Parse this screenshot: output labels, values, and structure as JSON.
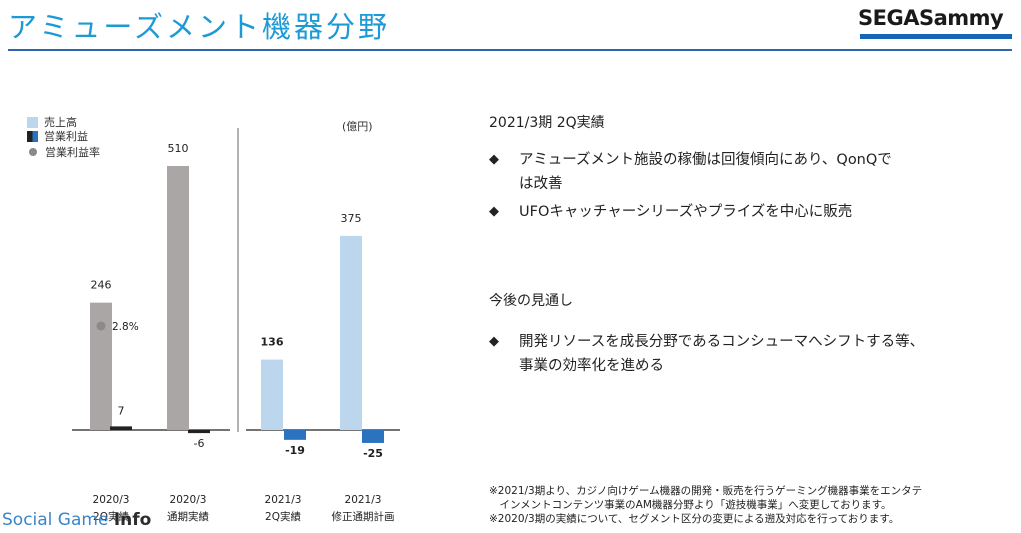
{
  "header": {
    "title": "アミューズメント機器分野",
    "logo_text": "SEGASammy"
  },
  "legend": {
    "sales": "売上高",
    "op_income": "営業利益",
    "op_margin": "営業利益率"
  },
  "unit_label": "(億円)",
  "chart_data": {
    "type": "bar",
    "categories": [
      "2020/3\n2Q実績",
      "2020/3\n通期実績",
      "2021/3\n2Q実績",
      "2021/3\n修正通期計画"
    ],
    "series": [
      {
        "name": "売上高",
        "values": [
          246,
          510,
          136,
          375
        ]
      },
      {
        "name": "営業利益",
        "values": [
          7,
          -6,
          -19,
          -25
        ]
      }
    ],
    "op_margin": [
      {
        "category_index": 0,
        "label": "2.8%"
      }
    ],
    "value_labels": {
      "sales": [
        "246",
        "510",
        "136",
        "375"
      ],
      "op_income": [
        "7",
        "-6",
        "-19",
        "-25"
      ]
    },
    "colors": {
      "sales_prev": "#aaa6a6",
      "sales_cur": "#bcd6ee",
      "op_prev": "#222222",
      "op_cur": "#2b73bf",
      "margin_dot": "#8a8a8a"
    }
  },
  "x_labels": {
    "c0_line1": "2020/3",
    "c0_line2": "2Q実績",
    "c1_line1": "2020/3",
    "c1_line2": "通期実績",
    "c2_line1": "2021/3",
    "c2_line2": "2Q実績",
    "c3_line1": "2021/3",
    "c3_line2": "修正通期計画"
  },
  "right": {
    "results_heading": "2021/3期 2Q実績",
    "results_bullets": [
      "アミューズメント施設の稼働は回復傾向にあり、QonQで\nは改善",
      "UFOキャッチャーシリーズやプライズを中心に販売"
    ],
    "outlook_heading": "今後の見通し",
    "outlook_bullets": [
      "開発リソースを成長分野であるコンシューマへシフトする等、\n事業の効率化を進める"
    ],
    "bullet_marker": "◆"
  },
  "footnotes": [
    "※2021/3期より、カジノ向けゲーム機器の開発・販売を行うゲーミング機器事業をエンタテ",
    "　インメントコンテンツ事業のAM機器分野より「遊技機事業」へ変更しております。",
    "※2020/3期の実績について、セグメント区分の変更による遡及対応を行っております。"
  ],
  "watermark": {
    "part1": "Social Game ",
    "part2": "Info"
  }
}
